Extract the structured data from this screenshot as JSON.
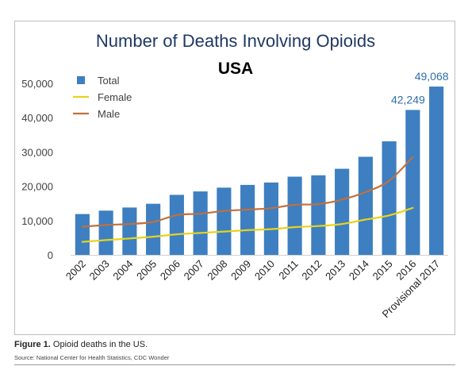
{
  "chart_data": {
    "type": "bar",
    "title": "Number of Deaths Involving Opioids",
    "subtitle": "USA",
    "categories": [
      "2002",
      "2003",
      "2004",
      "2005",
      "2006",
      "2007",
      "2008",
      "2009",
      "2010",
      "2011",
      "2012",
      "2013",
      "2014",
      "2015",
      "2016",
      "Provisional 2017"
    ],
    "series": [
      {
        "name": "Total",
        "kind": "bar",
        "color": "#3d7fc1",
        "values": [
          11900,
          12900,
          13800,
          14900,
          17500,
          18500,
          19600,
          20400,
          21100,
          22800,
          23200,
          25100,
          28600,
          33100,
          42249,
          49068
        ]
      },
      {
        "name": "Female",
        "kind": "line",
        "color": "#e8d21d",
        "values": [
          3800,
          4300,
          4800,
          5300,
          6000,
          6400,
          6800,
          7200,
          7500,
          8100,
          8400,
          9000,
          10300,
          11500,
          13700,
          null
        ]
      },
      {
        "name": "Male",
        "kind": "line",
        "color": "#c0703e",
        "values": [
          8200,
          8700,
          9000,
          9600,
          11600,
          12000,
          12800,
          13200,
          13600,
          14600,
          14800,
          16100,
          18300,
          21600,
          28500,
          null
        ]
      }
    ],
    "data_labels": [
      {
        "category": "2016",
        "text": "42,249"
      },
      {
        "category": "Provisional 2017",
        "text": "49,068"
      }
    ],
    "ylim": [
      0,
      50000
    ],
    "yticks": [
      "0",
      "10,000",
      "20,000",
      "30,000",
      "40,000",
      "50,000"
    ],
    "grid": false,
    "legend_position": "top-left"
  },
  "figure": {
    "label": "Figure 1.",
    "caption": " Opioid deaths in the US.",
    "source": "Source: National Center for Health Statistics, CDC Wonder"
  }
}
